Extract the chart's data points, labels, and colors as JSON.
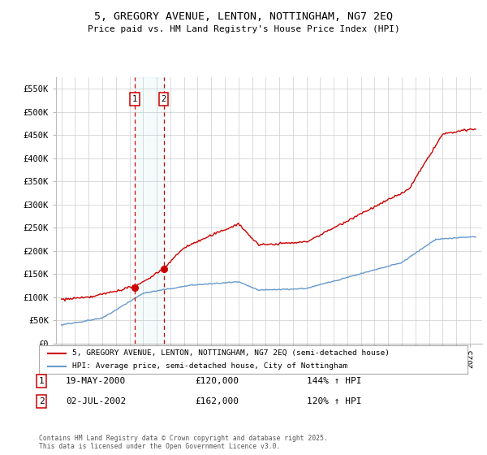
{
  "title": "5, GREGORY AVENUE, LENTON, NOTTINGHAM, NG7 2EQ",
  "subtitle": "Price paid vs. HM Land Registry's House Price Index (HPI)",
  "legend_line1": "5, GREGORY AVENUE, LENTON, NOTTINGHAM, NG7 2EQ (semi-detached house)",
  "legend_line2": "HPI: Average price, semi-detached house, City of Nottingham",
  "transaction1_date": "19-MAY-2000",
  "transaction1_price": "£120,000",
  "transaction1_hpi": "144% ↑ HPI",
  "transaction2_date": "02-JUL-2002",
  "transaction2_price": "£162,000",
  "transaction2_hpi": "120% ↑ HPI",
  "footer": "Contains HM Land Registry data © Crown copyright and database right 2025.\nThis data is licensed under the Open Government Licence v3.0.",
  "ylim": [
    0,
    575000
  ],
  "yticks": [
    0,
    50000,
    100000,
    150000,
    200000,
    250000,
    300000,
    350000,
    400000,
    450000,
    500000,
    550000
  ],
  "ytick_labels": [
    "£0",
    "£50K",
    "£100K",
    "£150K",
    "£200K",
    "£250K",
    "£300K",
    "£350K",
    "£400K",
    "£450K",
    "£500K",
    "£550K"
  ],
  "red_color": "#cc0000",
  "blue_color": "#6699cc",
  "background_color": "#ffffff",
  "grid_color": "#cccccc",
  "transaction1_x": 2000.38,
  "transaction2_x": 2002.5,
  "transaction1_y": 120000,
  "transaction2_y": 162000,
  "xlim_left": 1994.6,
  "xlim_right": 2025.9
}
